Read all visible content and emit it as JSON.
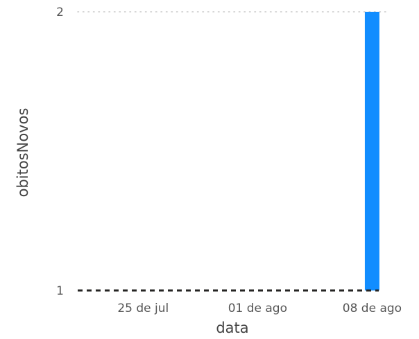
{
  "chart_data": {
    "type": "bar",
    "title": "",
    "xlabel": "data",
    "ylabel": "obitosNovos",
    "x_ticks": [
      "25 de jul",
      "01 de ago",
      "08 de ago"
    ],
    "x_tick_days": [
      4,
      11,
      18
    ],
    "x_range_days": [
      0,
      19
    ],
    "y_ticks": [
      1,
      2
    ],
    "ylim": [
      1,
      2
    ],
    "series": [
      {
        "values": [
          {
            "x": "08 de ago",
            "x_day": 18,
            "y": 2
          }
        ]
      }
    ],
    "reference_line": {
      "y": 1,
      "style": "dashed"
    },
    "grid": true,
    "bar_color": "#118DFF",
    "grid_color": "#C8C8C8",
    "reference_line_color": "#252423"
  }
}
